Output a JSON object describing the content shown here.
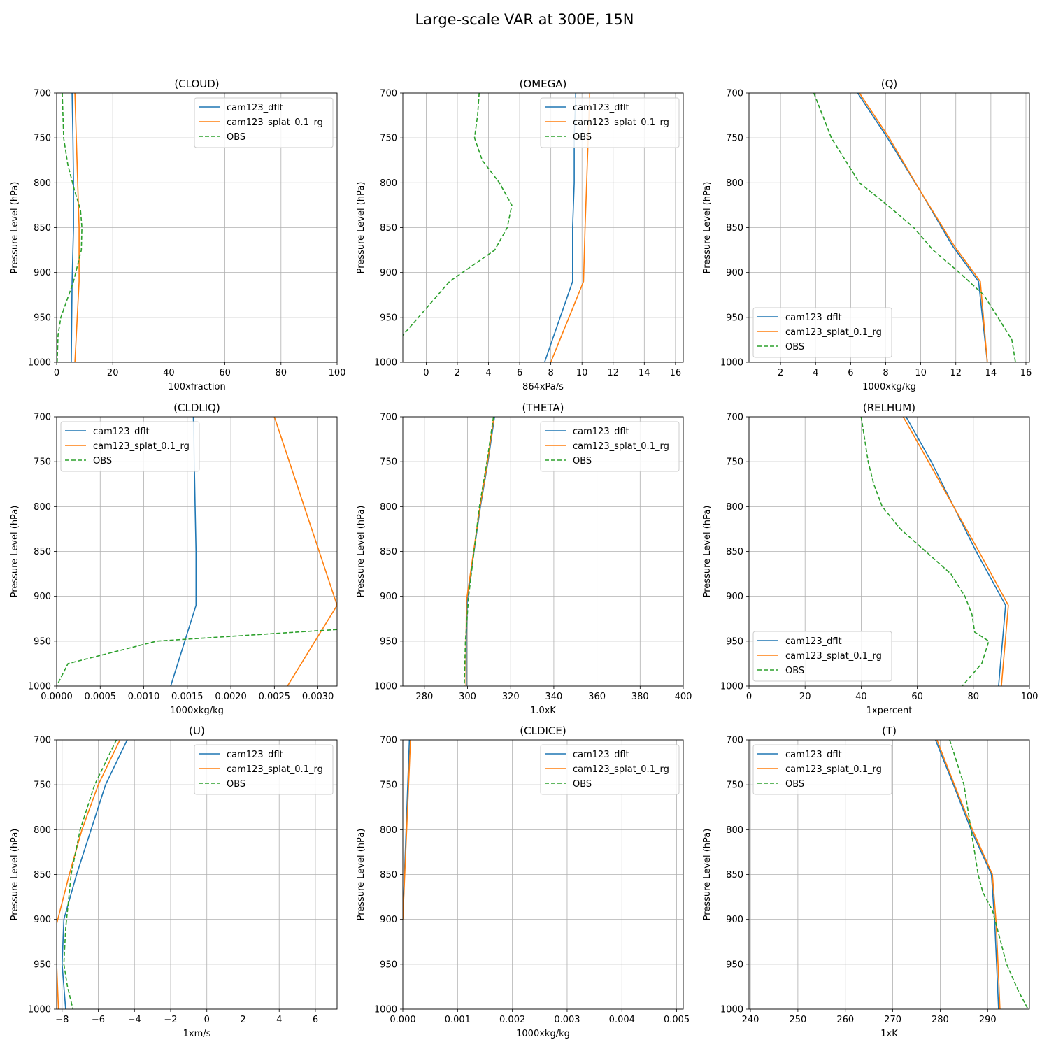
{
  "figure_title": "Large-scale VAR at 300E, 15N",
  "colors": {
    "cam123_dflt": "#1f77b4",
    "cam123_splat_0.1_rg": "#ff7f0e",
    "OBS": "#2ca02c"
  },
  "chart_data": [
    {
      "type": "line",
      "title": "(CLOUD)",
      "xlabel": "100xfraction",
      "ylabel": "Pressure Level (hPa)",
      "xlim": [
        0,
        100
      ],
      "ylim": [
        1000,
        700
      ],
      "y_inverted": true,
      "grid": true,
      "legend": "upper right",
      "xticks": [
        0,
        20,
        40,
        60,
        80,
        100
      ],
      "xtick_labels": [
        "0",
        "20",
        "40",
        "60",
        "80",
        "100"
      ],
      "yticks": [
        700,
        750,
        800,
        850,
        900,
        950,
        1000
      ],
      "ytick_labels": [
        "700",
        "750",
        "800",
        "850",
        "900",
        "950",
        "1000"
      ],
      "series": [
        {
          "name": "cam123_dflt",
          "style": "solid",
          "x": [
            5.5,
            5.8,
            6.0,
            6.0,
            5.5,
            5.2
          ],
          "y": [
            700,
            750,
            800,
            850,
            910,
            1000
          ]
        },
        {
          "name": "cam123_splat_0.1_rg",
          "style": "solid",
          "x": [
            6.5,
            7.0,
            7.5,
            8.0,
            8.0,
            6.5
          ],
          "y": [
            700,
            750,
            800,
            850,
            910,
            1000
          ]
        },
        {
          "name": "OBS",
          "style": "dashed",
          "x": [
            2.0,
            2.5,
            4.0,
            6.5,
            8.5,
            9.0,
            8.8,
            6.0,
            1.5,
            0.5,
            0.2
          ],
          "y": [
            700,
            750,
            780,
            810,
            830,
            850,
            875,
            910,
            950,
            970,
            1000
          ]
        }
      ]
    },
    {
      "type": "line",
      "title": "(OMEGA)",
      "xlabel": "864xPa/s",
      "ylabel": "Pressure Level (hPa)",
      "xlim": [
        -1.5,
        16.5
      ],
      "ylim": [
        1000,
        700
      ],
      "y_inverted": true,
      "grid": true,
      "legend": "upper right",
      "xticks": [
        0,
        2,
        4,
        6,
        8,
        10,
        12,
        14,
        16
      ],
      "xtick_labels": [
        "0",
        "2",
        "4",
        "6",
        "8",
        "10",
        "12",
        "14",
        "16"
      ],
      "yticks": [
        700,
        750,
        800,
        850,
        900,
        950,
        1000
      ],
      "ytick_labels": [
        "700",
        "750",
        "800",
        "850",
        "900",
        "950",
        "1000"
      ],
      "series": [
        {
          "name": "cam123_dflt",
          "style": "solid",
          "x": [
            9.6,
            9.5,
            9.5,
            9.4,
            9.4,
            7.6
          ],
          "y": [
            700,
            750,
            800,
            850,
            910,
            1000
          ]
        },
        {
          "name": "cam123_splat_0.1_rg",
          "style": "solid",
          "x": [
            10.5,
            10.4,
            10.3,
            10.2,
            10.1,
            8.0
          ],
          "y": [
            700,
            750,
            800,
            850,
            910,
            1000
          ]
        },
        {
          "name": "OBS",
          "style": "dashed",
          "x": [
            3.4,
            3.3,
            3.1,
            3.6,
            4.7,
            5.5,
            5.2,
            4.4,
            1.5,
            -0.5,
            -1.5
          ],
          "y": [
            700,
            725,
            750,
            775,
            800,
            825,
            850,
            875,
            910,
            950,
            970
          ]
        }
      ]
    },
    {
      "type": "line",
      "title": "(Q)",
      "xlabel": "1000xkg/kg",
      "ylabel": "Pressure Level (hPa)",
      "xlim": [
        0.2,
        16.2
      ],
      "ylim": [
        1000,
        700
      ],
      "y_inverted": true,
      "grid": true,
      "legend": "lower left",
      "xticks": [
        2,
        4,
        6,
        8,
        10,
        12,
        14,
        16
      ],
      "xtick_labels": [
        "2",
        "4",
        "6",
        "8",
        "10",
        "12",
        "14",
        "16"
      ],
      "yticks": [
        700,
        750,
        800,
        850,
        900,
        950,
        1000
      ],
      "ytick_labels": [
        "700",
        "750",
        "800",
        "850",
        "900",
        "950",
        "1000"
      ],
      "series": [
        {
          "name": "cam123_dflt",
          "style": "solid",
          "x": [
            6.4,
            8.1,
            10.0,
            11.8,
            13.3,
            13.8
          ],
          "y": [
            700,
            750,
            810,
            870,
            910,
            1000
          ]
        },
        {
          "name": "cam123_splat_0.1_rg",
          "style": "solid",
          "x": [
            6.5,
            8.2,
            10.0,
            11.9,
            13.4,
            13.8
          ],
          "y": [
            700,
            750,
            810,
            870,
            910,
            1000
          ]
        },
        {
          "name": "OBS",
          "style": "dashed",
          "x": [
            3.9,
            4.9,
            5.7,
            6.5,
            8.1,
            9.6,
            10.7,
            12.2,
            13.6,
            14.4,
            15.2,
            15.4
          ],
          "y": [
            700,
            750,
            775,
            800,
            825,
            850,
            875,
            900,
            925,
            950,
            975,
            1000
          ]
        }
      ]
    },
    {
      "type": "line",
      "title": "(CLDLIQ)",
      "xlabel": "1000xkg/kg",
      "ylabel": "Pressure Level (hPa)",
      "xlim": [
        0,
        0.00322
      ],
      "ylim": [
        1000,
        700
      ],
      "y_inverted": true,
      "grid": true,
      "legend": "upper left",
      "xticks": [
        0,
        0.0005,
        0.001,
        0.0015,
        0.002,
        0.0025,
        0.003
      ],
      "xtick_labels": [
        "0.0000",
        "0.0005",
        "0.0010",
        "0.0015",
        "0.0020",
        "0.0025",
        "0.0030"
      ],
      "yticks": [
        700,
        750,
        800,
        850,
        900,
        950,
        1000
      ],
      "ytick_labels": [
        "700",
        "750",
        "800",
        "850",
        "900",
        "950",
        "1000"
      ],
      "series": [
        {
          "name": "cam123_dflt",
          "style": "solid",
          "x": [
            0.00157,
            0.00158,
            0.00159,
            0.0016,
            0.0016,
            0.00131
          ],
          "y": [
            700,
            750,
            800,
            850,
            910,
            1000
          ]
        },
        {
          "name": "cam123_splat_0.1_rg",
          "style": "solid",
          "x": [
            0.0025,
            0.00322,
            0.00265
          ],
          "y": [
            700,
            910,
            1000
          ]
        },
        {
          "name": "OBS",
          "style": "dashed",
          "x": [
            0.00322,
            0.00115,
            0.00013,
            0.0
          ],
          "y": [
            937,
            950,
            975,
            1000
          ]
        }
      ]
    },
    {
      "type": "line",
      "title": "(THETA)",
      "xlabel": "1.0xK",
      "ylabel": "Pressure Level (hPa)",
      "xlim": [
        270,
        400
      ],
      "ylim": [
        1000,
        700
      ],
      "y_inverted": true,
      "grid": true,
      "legend": "upper right",
      "xticks": [
        280,
        300,
        320,
        340,
        360,
        380,
        400
      ],
      "xtick_labels": [
        "280",
        "300",
        "320",
        "340",
        "360",
        "380",
        "400"
      ],
      "yticks": [
        700,
        750,
        800,
        850,
        900,
        950,
        1000
      ],
      "ytick_labels": [
        "700",
        "750",
        "800",
        "850",
        "900",
        "950",
        "1000"
      ],
      "series": [
        {
          "name": "cam123_dflt",
          "style": "solid",
          "x": [
            312.5,
            309.5,
            306.0,
            303.0,
            299.8,
            299.5,
            299.5
          ],
          "y": [
            700,
            750,
            800,
            850,
            905,
            950,
            1000
          ]
        },
        {
          "name": "cam123_splat_0.1_rg",
          "style": "solid",
          "x": [
            312.2,
            309.3,
            305.8,
            302.8,
            299.5,
            299.3,
            299.3
          ],
          "y": [
            700,
            750,
            800,
            850,
            905,
            950,
            1000
          ]
        },
        {
          "name": "OBS",
          "style": "dashed",
          "x": [
            312.0,
            309.0,
            305.5,
            303.0,
            300.5,
            299.0,
            298.5
          ],
          "y": [
            700,
            750,
            800,
            850,
            900,
            950,
            1000
          ]
        }
      ]
    },
    {
      "type": "line",
      "title": "(RELHUM)",
      "xlabel": "1xpercent",
      "ylabel": "Pressure Level (hPa)",
      "xlim": [
        0,
        100
      ],
      "ylim": [
        1000,
        700
      ],
      "y_inverted": true,
      "grid": true,
      "legend": "lower left",
      "xticks": [
        0,
        20,
        40,
        60,
        80,
        100
      ],
      "xtick_labels": [
        "0",
        "20",
        "40",
        "60",
        "80",
        "100"
      ],
      "yticks": [
        700,
        750,
        800,
        850,
        900,
        950,
        1000
      ],
      "ytick_labels": [
        "700",
        "750",
        "800",
        "850",
        "900",
        "950",
        "1000"
      ],
      "series": [
        {
          "name": "cam123_dflt",
          "style": "solid",
          "x": [
            56.0,
            65.0,
            73.0,
            81.0,
            91.5,
            89.0
          ],
          "y": [
            700,
            750,
            800,
            850,
            910,
            1000
          ]
        },
        {
          "name": "cam123_splat_0.1_rg",
          "style": "solid",
          "x": [
            55.0,
            64.0,
            73.0,
            82.0,
            92.5,
            90.0
          ],
          "y": [
            700,
            750,
            800,
            850,
            910,
            1000
          ]
        },
        {
          "name": "OBS",
          "style": "dashed",
          "x": [
            40.0,
            42.5,
            44.5,
            47.5,
            54.0,
            63.0,
            72.0,
            77.0,
            79.5,
            80.5,
            85.5,
            83.0,
            76.0
          ],
          "y": [
            700,
            750,
            775,
            800,
            825,
            850,
            875,
            900,
            920,
            940,
            950,
            975,
            1000
          ]
        }
      ]
    },
    {
      "type": "line",
      "title": "(U)",
      "xlabel": "1xm/s",
      "ylabel": "Pressure Level (hPa)",
      "xlim": [
        -8.3,
        7.2
      ],
      "ylim": [
        1000,
        700
      ],
      "y_inverted": true,
      "grid": true,
      "legend": "upper right",
      "xticks": [
        -8,
        -6,
        -4,
        -2,
        0,
        2,
        4,
        6
      ],
      "xtick_labels": [
        "−8",
        "−6",
        "−4",
        "−2",
        "0",
        "2",
        "4",
        "6"
      ],
      "yticks": [
        700,
        750,
        800,
        850,
        900,
        950,
        1000
      ],
      "ytick_labels": [
        "700",
        "750",
        "800",
        "850",
        "900",
        "950",
        "1000"
      ],
      "series": [
        {
          "name": "cam123_dflt",
          "style": "solid",
          "x": [
            -4.4,
            -5.6,
            -6.4,
            -7.2,
            -7.9,
            -8.0,
            -7.8
          ],
          "y": [
            700,
            750,
            800,
            850,
            900,
            950,
            1000
          ]
        },
        {
          "name": "cam123_splat_0.1_rg",
          "style": "solid",
          "x": [
            -4.8,
            -6.0,
            -6.9,
            -7.6,
            -8.3,
            -8.3,
            -8.2
          ],
          "y": [
            700,
            750,
            800,
            850,
            905,
            950,
            1000
          ]
        },
        {
          "name": "OBS",
          "style": "dashed",
          "x": [
            -5.0,
            -6.2,
            -7.0,
            -7.5,
            -7.8,
            -7.9,
            -7.7,
            -7.4
          ],
          "y": [
            700,
            750,
            800,
            850,
            910,
            950,
            975,
            1000
          ]
        }
      ]
    },
    {
      "type": "line",
      "title": "(CLDICE)",
      "xlabel": "1000xkg/kg",
      "ylabel": "Pressure Level (hPa)",
      "xlim": [
        0,
        0.00512
      ],
      "ylim": [
        1000,
        700
      ],
      "y_inverted": true,
      "grid": true,
      "legend": "upper right",
      "xticks": [
        0,
        0.001,
        0.002,
        0.003,
        0.004,
        0.005
      ],
      "xtick_labels": [
        "0.000",
        "0.001",
        "0.002",
        "0.003",
        "0.004",
        "0.005"
      ],
      "yticks": [
        700,
        750,
        800,
        850,
        900,
        950,
        1000
      ],
      "ytick_labels": [
        "700",
        "750",
        "800",
        "850",
        "900",
        "950",
        "1000"
      ],
      "series": [
        {
          "name": "cam123_dflt",
          "style": "solid",
          "x": [
            0.00012,
            6e-05,
            0.0
          ],
          "y": [
            700,
            800,
            900
          ]
        },
        {
          "name": "cam123_splat_0.1_rg",
          "style": "solid",
          "x": [
            0.00014,
            7e-05,
            0.0
          ],
          "y": [
            700,
            800,
            900
          ]
        },
        {
          "name": "OBS",
          "style": "dashed",
          "x": [],
          "y": []
        }
      ]
    },
    {
      "type": "line",
      "title": "(T)",
      "xlabel": "1xK",
      "ylabel": "Pressure Level (hPa)",
      "xlim": [
        239.7,
        298.8
      ],
      "ylim": [
        1000,
        700
      ],
      "y_inverted": true,
      "grid": true,
      "legend": "upper left",
      "xticks": [
        240,
        250,
        260,
        270,
        280,
        290
      ],
      "xtick_labels": [
        "240",
        "250",
        "260",
        "270",
        "280",
        "290"
      ],
      "yticks": [
        700,
        750,
        800,
        850,
        900,
        950,
        1000
      ],
      "ytick_labels": [
        "700",
        "750",
        "800",
        "850",
        "900",
        "950",
        "1000"
      ],
      "series": [
        {
          "name": "cam123_dflt",
          "style": "solid",
          "x": [
            279.0,
            282.8,
            286.5,
            290.8,
            291.5,
            292.3
          ],
          "y": [
            700,
            750,
            800,
            850,
            905,
            1000
          ]
        },
        {
          "name": "cam123_splat_0.1_rg",
          "style": "solid",
          "x": [
            279.3,
            283.0,
            286.8,
            291.0,
            291.8,
            292.6
          ],
          "y": [
            700,
            750,
            800,
            850,
            905,
            1000
          ]
        },
        {
          "name": "OBS",
          "style": "dashed",
          "x": [
            282.0,
            285.0,
            286.5,
            288.0,
            289.0,
            291.0,
            292.5,
            294.0,
            296.5,
            298.5
          ],
          "y": [
            700,
            750,
            800,
            850,
            870,
            890,
            920,
            950,
            980,
            1000
          ]
        }
      ]
    }
  ]
}
